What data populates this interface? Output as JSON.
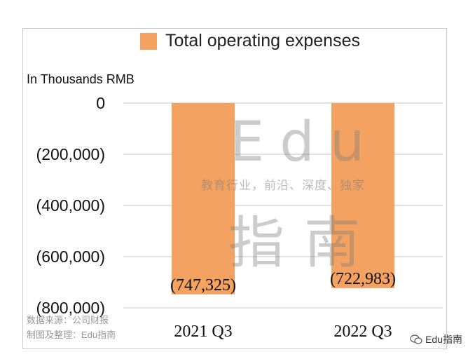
{
  "chart_data": {
    "type": "bar",
    "title": "",
    "unit_label": "In Thousands RMB",
    "categories": [
      "2021 Q3",
      "2022 Q3"
    ],
    "series": [
      {
        "name": "Total operating expenses",
        "values": [
          -747325,
          -722983
        ],
        "color": "#f4a262"
      }
    ],
    "data_labels": [
      "(747,325)",
      "(722,983)"
    ],
    "ylim": [
      -800000,
      0
    ],
    "yticks": [
      0,
      -200000,
      -400000,
      -600000,
      -800000
    ],
    "ytick_labels": [
      "0",
      "(200,000)",
      "(400,000)",
      "(600,000)",
      "(800,000)"
    ],
    "grid": true,
    "legend_position": "top"
  },
  "source_line1": "数据来源：公司财报",
  "source_line2": "制图及整理：Edu指南",
  "brand": "Edu指南",
  "watermark": {
    "latin": "Edu",
    "tagline": "教育行业，前沿、深度、独家",
    "cn": "指南"
  }
}
